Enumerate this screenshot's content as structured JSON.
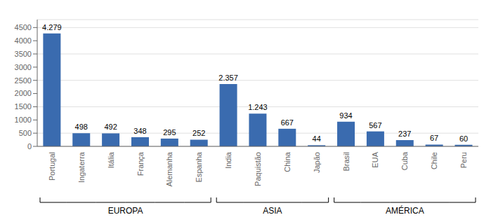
{
  "chart_data": {
    "type": "bar",
    "categories": [
      "Portugal",
      "Ingaterra",
      "Itália",
      "França",
      "Alemanha",
      "Espanha",
      "India",
      "Paquistão",
      "China",
      "Japão",
      "Brasil",
      "EUA",
      "Cuba",
      "Chile",
      "Peru"
    ],
    "values": [
      4279,
      498,
      492,
      348,
      295,
      252,
      2357,
      1243,
      667,
      44,
      934,
      567,
      237,
      67,
      60
    ],
    "value_labels": [
      "4.279",
      "498",
      "492",
      "348",
      "295",
      "252",
      "2.357",
      "1.243",
      "667",
      "44",
      "934",
      "567",
      "237",
      "67",
      "60"
    ],
    "data_labels": true,
    "color": "#3A6BAF",
    "ylim": [
      0,
      4800
    ],
    "yticks": [
      0,
      500,
      1000,
      1500,
      2000,
      2500,
      3000,
      3500,
      4000,
      4500
    ],
    "grid": true,
    "annotations": [
      {
        "text": "EUROPA",
        "categories": [
          "Portugal",
          "Ingaterra",
          "Itália",
          "França",
          "Alemanha",
          "Espanha"
        ]
      },
      {
        "text": "ASIA",
        "categories": [
          "India",
          "Paquistão",
          "China",
          "Japão"
        ]
      },
      {
        "text": "AMÉRICA",
        "categories": [
          "Brasil",
          "EUA",
          "Cuba",
          "Chile",
          "Peru"
        ]
      }
    ]
  }
}
